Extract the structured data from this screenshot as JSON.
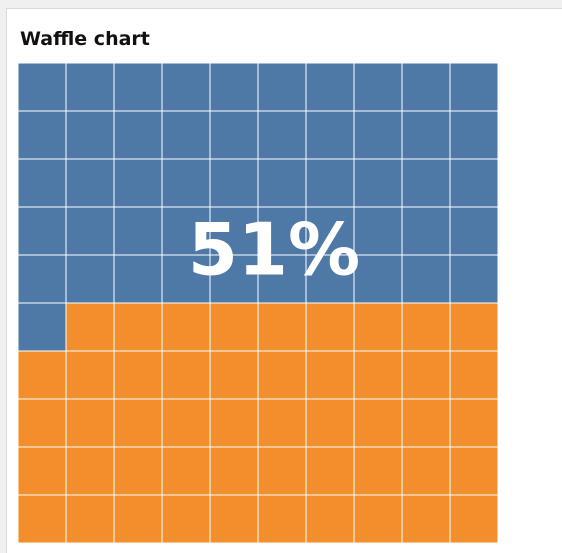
{
  "chart_data": {
    "type": "waffle",
    "title": "Waffle chart",
    "rows": 10,
    "columns": 10,
    "filled_percent": 51,
    "label": "51%",
    "fill_order": "top-left, left-to-right, top-to-bottom",
    "colors": {
      "filled": "#4e79a7",
      "empty": "#f28e2b",
      "gridlines": "#ffffff",
      "label": "#ffffff"
    }
  }
}
